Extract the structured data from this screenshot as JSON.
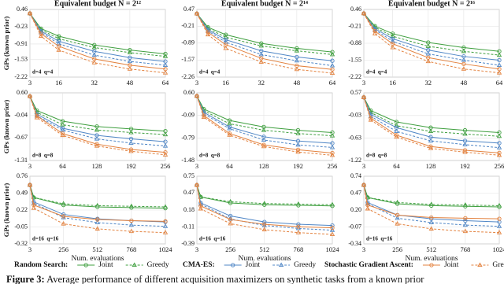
{
  "chart_data": [
    {
      "type": "line",
      "title": "Equivalent budget N = 2¹²",
      "ylabel": "GPs (known prior)",
      "annotation": "d=4  q=4",
      "x": [
        3,
        8,
        16,
        32,
        48,
        64
      ],
      "xlim": [
        3,
        64
      ],
      "xticks": [
        3,
        16,
        32,
        48,
        64
      ],
      "ylim": [
        -2.22,
        0.46
      ],
      "yticks": [
        0.46,
        -0.23,
        -0.91,
        -1.53,
        -2.22
      ],
      "grid": true,
      "series": [
        {
          "group": 0,
          "style": 0,
          "values": [
            0.3,
            -0.3,
            -0.6,
            -0.95,
            -1.15,
            -1.3
          ]
        },
        {
          "group": 0,
          "style": 1,
          "values": [
            0.3,
            -0.35,
            -0.7,
            -1.05,
            -1.25,
            -1.4
          ]
        },
        {
          "group": 1,
          "style": 0,
          "values": [
            0.3,
            -0.4,
            -0.8,
            -1.2,
            -1.45,
            -1.6
          ]
        },
        {
          "group": 1,
          "style": 1,
          "values": [
            0.3,
            -0.45,
            -0.9,
            -1.35,
            -1.6,
            -1.75
          ]
        },
        {
          "group": 2,
          "style": 0,
          "values": [
            0.3,
            -0.5,
            -1.0,
            -1.5,
            -1.75,
            -1.9
          ]
        },
        {
          "group": 2,
          "style": 1,
          "values": [
            0.3,
            -0.6,
            -1.15,
            -1.65,
            -1.9,
            -2.05
          ]
        }
      ]
    },
    {
      "type": "line",
      "title": "Equivalent budget N = 2¹⁴",
      "annotation": "d=4  q=4",
      "x": [
        3,
        8,
        16,
        32,
        48,
        64
      ],
      "xlim": [
        3,
        64
      ],
      "xticks": [
        3,
        16,
        32,
        48,
        64
      ],
      "ylim": [
        -2.26,
        0.47
      ],
      "yticks": [
        0.47,
        -0.21,
        -0.89,
        -1.57,
        -2.26
      ],
      "grid": true,
      "series": [
        {
          "group": 0,
          "style": 0,
          "values": [
            0.3,
            -0.25,
            -0.55,
            -0.9,
            -1.1,
            -1.25
          ]
        },
        {
          "group": 0,
          "style": 1,
          "values": [
            0.3,
            -0.3,
            -0.65,
            -1.0,
            -1.2,
            -1.35
          ]
        },
        {
          "group": 1,
          "style": 0,
          "values": [
            0.3,
            -0.35,
            -0.75,
            -1.2,
            -1.45,
            -1.6
          ]
        },
        {
          "group": 1,
          "style": 1,
          "values": [
            0.3,
            -0.4,
            -0.85,
            -1.35,
            -1.6,
            -1.8
          ]
        },
        {
          "group": 2,
          "style": 0,
          "values": [
            0.3,
            -0.45,
            -0.95,
            -1.5,
            -1.8,
            -1.95
          ]
        },
        {
          "group": 2,
          "style": 1,
          "values": [
            0.3,
            -0.55,
            -1.1,
            -1.65,
            -1.95,
            -2.1
          ]
        }
      ]
    },
    {
      "type": "line",
      "title": "Equivalent budget N = 2¹⁶",
      "annotation": "d=4  q=4",
      "x": [
        3,
        8,
        16,
        32,
        48,
        64
      ],
      "xlim": [
        3,
        64
      ],
      "xticks": [
        3,
        16,
        32,
        48,
        64
      ],
      "ylim": [
        -2.22,
        0.46
      ],
      "yticks": [
        0.46,
        -0.21,
        -0.88,
        -1.55,
        -2.22
      ],
      "grid": true,
      "series": [
        {
          "group": 0,
          "style": 0,
          "values": [
            0.3,
            -0.2,
            -0.5,
            -0.85,
            -1.05,
            -1.2
          ]
        },
        {
          "group": 0,
          "style": 1,
          "values": [
            0.3,
            -0.25,
            -0.6,
            -1.0,
            -1.2,
            -1.35
          ]
        },
        {
          "group": 1,
          "style": 0,
          "values": [
            0.3,
            -0.3,
            -0.7,
            -1.15,
            -1.4,
            -1.55
          ]
        },
        {
          "group": 1,
          "style": 1,
          "values": [
            0.3,
            -0.35,
            -0.8,
            -1.3,
            -1.55,
            -1.75
          ]
        },
        {
          "group": 2,
          "style": 0,
          "values": [
            0.3,
            -0.4,
            -0.9,
            -1.45,
            -1.7,
            -1.9
          ]
        },
        {
          "group": 2,
          "style": 1,
          "values": [
            0.3,
            -0.5,
            -1.05,
            -1.6,
            -1.9,
            -2.05
          ]
        }
      ]
    },
    {
      "type": "line",
      "ylabel": "GPs (known prior)",
      "annotation": "d=8  q=8",
      "x": [
        3,
        16,
        64,
        128,
        192,
        256
      ],
      "xlim": [
        3,
        256
      ],
      "xticks": [
        3,
        64,
        128,
        192,
        256
      ],
      "ylim": [
        -1.31,
        0.6
      ],
      "yticks": [
        {
          "value": 0.6,
          "label": "0.60"
        },
        -0.04,
        -0.67,
        -1.31
      ],
      "grid": true,
      "series": [
        {
          "group": 0,
          "style": 0,
          "values": [
            0.5,
            0.1,
            -0.2,
            -0.35,
            -0.42,
            -0.48
          ]
        },
        {
          "group": 0,
          "style": 1,
          "values": [
            0.5,
            0.05,
            -0.3,
            -0.45,
            -0.52,
            -0.58
          ]
        },
        {
          "group": 1,
          "style": 0,
          "values": [
            0.5,
            0.0,
            -0.4,
            -0.6,
            -0.7,
            -0.78
          ]
        },
        {
          "group": 1,
          "style": 1,
          "values": [
            0.5,
            -0.05,
            -0.45,
            -0.7,
            -0.82,
            -0.9
          ]
        },
        {
          "group": 2,
          "style": 0,
          "values": [
            0.5,
            -0.05,
            -0.55,
            -0.85,
            -1.0,
            -1.08
          ]
        },
        {
          "group": 2,
          "style": 1,
          "values": [
            0.5,
            -0.1,
            -0.6,
            -0.9,
            -1.05,
            -1.15
          ]
        }
      ]
    },
    {
      "type": "line",
      "annotation": "d=8  q=8",
      "x": [
        3,
        16,
        64,
        128,
        192,
        256
      ],
      "xlim": [
        3,
        256
      ],
      "xticks": [
        3,
        64,
        128,
        192,
        256
      ],
      "ylim": [
        -1.48,
        0.6
      ],
      "yticks": [
        {
          "value": 0.6,
          "label": "0.60"
        },
        -0.09,
        -0.79,
        -1.48
      ],
      "grid": true,
      "series": [
        {
          "group": 0,
          "style": 0,
          "values": [
            0.5,
            0.1,
            -0.25,
            -0.45,
            -0.55,
            -0.62
          ]
        },
        {
          "group": 0,
          "style": 1,
          "values": [
            0.5,
            0.05,
            -0.35,
            -0.55,
            -0.65,
            -0.72
          ]
        },
        {
          "group": 1,
          "style": 0,
          "values": [
            0.5,
            0.0,
            -0.45,
            -0.75,
            -0.88,
            -0.95
          ]
        },
        {
          "group": 1,
          "style": 1,
          "values": [
            0.5,
            -0.05,
            -0.5,
            -0.85,
            -1.0,
            -1.08
          ]
        },
        {
          "group": 2,
          "style": 0,
          "values": [
            0.5,
            -0.1,
            -0.65,
            -1.0,
            -1.15,
            -1.25
          ]
        },
        {
          "group": 2,
          "style": 1,
          "values": [
            0.5,
            -0.15,
            -0.7,
            -1.05,
            -1.22,
            -1.32
          ]
        }
      ]
    },
    {
      "type": "line",
      "annotation": "d=8  q=8",
      "x": [
        3,
        16,
        64,
        128,
        192,
        256
      ],
      "xlim": [
        3,
        256
      ],
      "xticks": [
        3,
        64,
        128,
        192,
        256
      ],
      "ylim": [
        -1.22,
        0.57
      ],
      "yticks": [
        0.57,
        -0.03,
        -0.63,
        -1.22
      ],
      "grid": true,
      "series": [
        {
          "group": 0,
          "style": 0,
          "values": [
            0.45,
            0.1,
            -0.2,
            -0.35,
            -0.42,
            -0.48
          ]
        },
        {
          "group": 0,
          "style": 1,
          "values": [
            0.45,
            0.05,
            -0.3,
            -0.45,
            -0.52,
            -0.58
          ]
        },
        {
          "group": 1,
          "style": 0,
          "values": [
            0.45,
            0.0,
            -0.35,
            -0.6,
            -0.7,
            -0.76
          ]
        },
        {
          "group": 1,
          "style": 1,
          "values": [
            0.45,
            -0.05,
            -0.45,
            -0.7,
            -0.8,
            -0.88
          ]
        },
        {
          "group": 2,
          "style": 0,
          "values": [
            0.45,
            -0.1,
            -0.55,
            -0.85,
            -0.95,
            -1.02
          ]
        },
        {
          "group": 2,
          "style": 1,
          "values": [
            0.45,
            -0.15,
            -0.6,
            -0.9,
            -1.0,
            -1.08
          ]
        }
      ]
    },
    {
      "type": "line",
      "ylabel": "GPs (known prior)",
      "xlabel": "Num. evaluations",
      "annotation": "d=16  q=16",
      "x": [
        3,
        32,
        256,
        512,
        768,
        1024
      ],
      "xlim": [
        3,
        1024
      ],
      "xticks": [
        3,
        256,
        512,
        768,
        1024
      ],
      "ylim": [
        -0.32,
        0.76
      ],
      "yticks": [
        0.76,
        0.49,
        0.22,
        -0.05,
        -0.32
      ],
      "grid": true,
      "series": [
        {
          "group": 0,
          "style": 0,
          "values": [
            0.62,
            0.42,
            0.3,
            0.27,
            0.26,
            0.25
          ]
        },
        {
          "group": 0,
          "style": 1,
          "values": [
            0.62,
            0.42,
            0.32,
            0.29,
            0.28,
            0.27
          ]
        },
        {
          "group": 1,
          "style": 0,
          "values": [
            0.62,
            0.35,
            0.15,
            0.08,
            0.05,
            0.03
          ]
        },
        {
          "group": 1,
          "style": 1,
          "values": [
            0.62,
            0.33,
            0.1,
            0.02,
            -0.02,
            -0.04
          ]
        },
        {
          "group": 2,
          "style": 0,
          "values": [
            0.62,
            0.3,
            0.12,
            0.07,
            0.05,
            0.04
          ]
        },
        {
          "group": 2,
          "style": 1,
          "values": [
            0.62,
            0.25,
            0.0,
            -0.08,
            -0.12,
            -0.14
          ]
        }
      ]
    },
    {
      "type": "line",
      "xlabel": "Num. evaluations",
      "annotation": "d=16  q=16",
      "x": [
        3,
        32,
        256,
        512,
        768,
        1024
      ],
      "xlim": [
        3,
        1024
      ],
      "xticks": [
        3,
        256,
        512,
        768,
        1024
      ],
      "ylim": [
        -0.39,
        0.75
      ],
      "yticks": [
        0.75,
        0.47,
        0.18,
        -0.11,
        -0.39
      ],
      "grid": true,
      "series": [
        {
          "group": 0,
          "style": 0,
          "values": [
            0.6,
            0.4,
            0.3,
            0.27,
            0.26,
            0.25
          ]
        },
        {
          "group": 0,
          "style": 1,
          "values": [
            0.6,
            0.4,
            0.32,
            0.29,
            0.28,
            0.27
          ]
        },
        {
          "group": 1,
          "style": 0,
          "values": [
            0.6,
            0.3,
            0.08,
            -0.02,
            -0.06,
            -0.08
          ]
        },
        {
          "group": 1,
          "style": 1,
          "values": [
            0.6,
            0.28,
            0.03,
            -0.08,
            -0.13,
            -0.16
          ]
        },
        {
          "group": 2,
          "style": 0,
          "values": [
            0.6,
            0.25,
            0.02,
            -0.06,
            -0.1,
            -0.12
          ]
        },
        {
          "group": 2,
          "style": 1,
          "values": [
            0.6,
            0.2,
            -0.05,
            -0.15,
            -0.2,
            -0.23
          ]
        }
      ]
    },
    {
      "type": "line",
      "xlabel": "Num. evaluations",
      "annotation": "d=16  q=16",
      "x": [
        3,
        32,
        256,
        512,
        768,
        1024
      ],
      "xlim": [
        3,
        1024
      ],
      "xticks": [
        3,
        256,
        512,
        768,
        1024
      ],
      "ylim": [
        -0.34,
        0.74
      ],
      "yticks": [
        0.74,
        0.47,
        {
          "value": 0.2,
          "label": "0.20"
        },
        -0.07,
        -0.34
      ],
      "grid": true,
      "series": [
        {
          "group": 0,
          "style": 0,
          "values": [
            0.6,
            0.4,
            0.3,
            0.27,
            0.26,
            0.25
          ]
        },
        {
          "group": 0,
          "style": 1,
          "values": [
            0.6,
            0.4,
            0.32,
            0.29,
            0.28,
            0.27
          ]
        },
        {
          "group": 1,
          "style": 0,
          "values": [
            0.6,
            0.32,
            0.12,
            0.06,
            0.03,
            0.01
          ]
        },
        {
          "group": 1,
          "style": 1,
          "values": [
            0.6,
            0.3,
            0.07,
            0.0,
            -0.04,
            -0.06
          ]
        },
        {
          "group": 2,
          "style": 0,
          "values": [
            0.6,
            0.28,
            0.12,
            0.08,
            0.07,
            0.06
          ]
        },
        {
          "group": 2,
          "style": 1,
          "values": [
            0.6,
            0.22,
            -0.02,
            -0.1,
            -0.14,
            -0.16
          ]
        }
      ]
    }
  ],
  "legend": {
    "groups": [
      {
        "title": "Random Search:",
        "color": "#3f9f3f"
      },
      {
        "title": "CMA-ES:",
        "color": "#4f86c6"
      },
      {
        "title": "Stochastic Gradient Ascent:",
        "color": "#e3823f"
      }
    ],
    "entries": [
      "Joint",
      "Greedy"
    ]
  },
  "caption": {
    "label": "Figure 3:",
    "text": "Average performance of different acquisition maximizers on synthetic tasks from a known prior"
  }
}
